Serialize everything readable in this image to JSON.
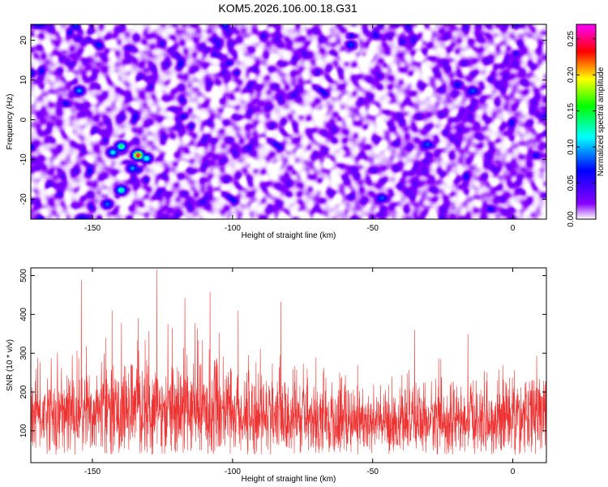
{
  "title": "KOM5.2026.106.00.18.G31",
  "chart_data": [
    {
      "type": "heatmap",
      "xlabel": "Height of straight line (km)",
      "ylabel": "Frequency (Hz)",
      "xlim": [
        -172,
        12
      ],
      "ylim": [
        -25,
        24
      ],
      "xticks": [
        -150,
        -100,
        -50,
        0
      ],
      "xtick_labels": [
        "-150",
        "-100",
        "-50",
        "0"
      ],
      "yticks": [
        -20,
        -10,
        0,
        10,
        20
      ],
      "ytick_labels": [
        "-20",
        "-10",
        "0",
        "10",
        "20"
      ],
      "colorbar": {
        "label": "Normalized spectral amplitude",
        "range": [
          0,
          0.27
        ],
        "ticks": [
          0.0,
          0.05,
          0.1,
          0.15,
          0.2,
          0.25
        ],
        "tick_labels": [
          "0.00",
          "0.05",
          "0.10",
          "0.15",
          "0.20",
          "0.25"
        ],
        "colors": [
          "#ffffff",
          "#8800ff",
          "#0000ff",
          "#00ffff",
          "#00ff00",
          "#ffff00",
          "#ff0000",
          "#ff00ff"
        ]
      },
      "hotspots": [
        {
          "x": -134,
          "y": -8.7,
          "value": 0.26
        },
        {
          "x": -140,
          "y": -6.5,
          "value": 0.15
        },
        {
          "x": -140,
          "y": -17.5,
          "value": 0.14
        },
        {
          "x": -131,
          "y": -9.5,
          "value": 0.13
        },
        {
          "x": -143,
          "y": -8.0,
          "value": 0.12
        },
        {
          "x": -136,
          "y": -12.0,
          "value": 0.1
        },
        {
          "x": -155,
          "y": 7.5,
          "value": 0.1
        },
        {
          "x": -145,
          "y": -21.0,
          "value": 0.09
        },
        {
          "x": -58,
          "y": 19.0,
          "value": 0.08
        },
        {
          "x": -20,
          "y": 9.0,
          "value": 0.07
        }
      ]
    },
    {
      "type": "line",
      "xlabel": "Height of straight line (km)",
      "ylabel": "SNR (10 * v/v)",
      "xlim": [
        -172,
        12
      ],
      "ylim": [
        18,
        520
      ],
      "xticks": [
        -150,
        -100,
        -50,
        0
      ],
      "xtick_labels": [
        "-150",
        "-100",
        "-50",
        "0"
      ],
      "yticks": [
        100,
        200,
        300,
        400,
        500
      ],
      "ytick_labels": [
        "100",
        "200",
        "300",
        "400",
        "500"
      ],
      "series_color": "#ee3333",
      "peaks": [
        {
          "x": -154,
          "y": 488
        },
        {
          "x": -127,
          "y": 515
        },
        {
          "x": -108,
          "y": 458
        },
        {
          "x": -117,
          "y": 442
        },
        {
          "x": -143,
          "y": 410
        },
        {
          "x": -98,
          "y": 410
        },
        {
          "x": -35,
          "y": 360
        }
      ],
      "envelope": {
        "x": [
          -172,
          -150,
          -120,
          -100,
          -80,
          -60,
          -40,
          -20,
          0,
          12
        ],
        "y_mean": [
          140,
          150,
          155,
          150,
          135,
          125,
          120,
          130,
          135,
          140
        ],
        "y_amplitude": [
          70,
          80,
          85,
          80,
          70,
          60,
          55,
          65,
          70,
          70
        ]
      }
    }
  ]
}
